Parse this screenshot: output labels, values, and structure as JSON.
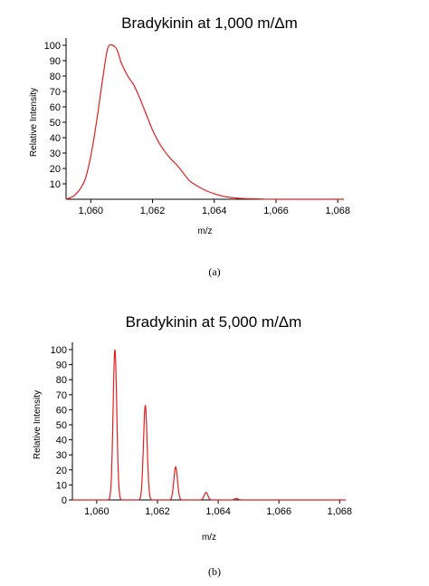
{
  "chart_data": [
    {
      "type": "line",
      "title": "Bradykinin at 1,000 m/Δm",
      "xlabel": "m/z",
      "ylabel": "Relative Intensity",
      "xlim": [
        1059.2,
        1068.2
      ],
      "ylim": [
        0,
        100
      ],
      "x_ticks": [
        "1,060",
        "1,062",
        "1,064",
        "1,066",
        "1,068"
      ],
      "x_tick_values": [
        1060,
        1062,
        1064,
        1066,
        1068
      ],
      "y_ticks": [
        "10",
        "20",
        "30",
        "40",
        "50",
        "60",
        "70",
        "80",
        "90",
        "100"
      ],
      "y_tick_values": [
        10,
        20,
        30,
        40,
        50,
        60,
        70,
        80,
        90,
        100
      ],
      "grid": false,
      "line_color": "#e02020",
      "series": [
        {
          "x": [
            1059.2,
            1059.5,
            1059.8,
            1060.0,
            1060.2,
            1060.4,
            1060.55,
            1060.7,
            1060.85,
            1061.0,
            1061.2,
            1061.4,
            1061.6,
            1061.8,
            1062.0,
            1062.2,
            1062.4,
            1062.6,
            1062.8,
            1063.0,
            1063.2,
            1063.5,
            1063.8,
            1064.1,
            1064.4,
            1064.7,
            1065.0,
            1065.5,
            1066.0,
            1068.2
          ],
          "y": [
            0,
            3,
            12,
            28,
            52,
            80,
            98,
            100,
            97,
            88,
            80,
            74,
            65,
            55,
            45,
            37,
            31,
            26,
            22,
            17,
            12,
            8,
            5,
            3,
            1.5,
            0.8,
            0.4,
            0.2,
            0,
            0
          ]
        }
      ],
      "caption": "(a)"
    },
    {
      "type": "line",
      "title": "Bradykinin at 5,000 m/Δm",
      "xlabel": "m/z",
      "ylabel": "Relative Intensity",
      "xlim": [
        1059.2,
        1068.2
      ],
      "ylim": [
        0,
        100
      ],
      "x_ticks": [
        "1,060",
        "1,062",
        "1,064",
        "1,066",
        "1,068"
      ],
      "x_tick_values": [
        1060,
        1062,
        1064,
        1066,
        1068
      ],
      "y_ticks": [
        "0",
        "10",
        "20",
        "30",
        "40",
        "50",
        "60",
        "70",
        "80",
        "90",
        "100"
      ],
      "y_tick_values": [
        0,
        10,
        20,
        30,
        40,
        50,
        60,
        70,
        80,
        90,
        100
      ],
      "grid": false,
      "line_color": "#e02020",
      "peaks": [
        {
          "x": 1060.6,
          "y": 100
        },
        {
          "x": 1061.6,
          "y": 63
        },
        {
          "x": 1062.6,
          "y": 22
        },
        {
          "x": 1063.6,
          "y": 5
        },
        {
          "x": 1064.6,
          "y": 1
        }
      ],
      "caption": "(b)"
    }
  ]
}
